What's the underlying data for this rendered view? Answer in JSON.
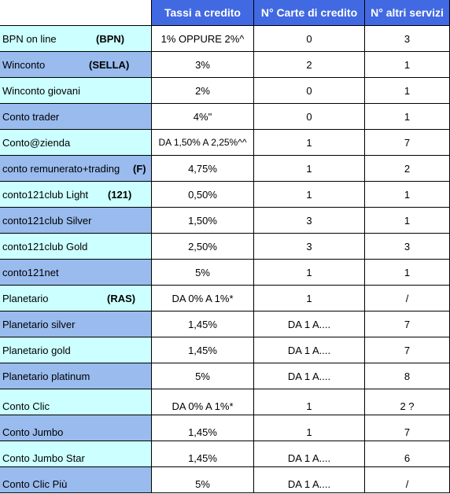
{
  "table": {
    "headers": [
      "",
      "Tassi a credito",
      "N° Carte di credito",
      "N° altri servizi"
    ],
    "rows": [
      {
        "name": "BPN on line",
        "brand": "(BPN)",
        "rate": "1% OPPURE 2%^",
        "cards": "0",
        "services": "3",
        "color": "cyan"
      },
      {
        "name": "Winconto",
        "brand": "(SELLA)",
        "rate": "3%",
        "cards": "2",
        "services": "1",
        "color": "blue"
      },
      {
        "name": "Winconto giovani",
        "brand": "",
        "rate": "2%",
        "cards": "0",
        "services": "1",
        "color": "cyan"
      },
      {
        "name": "Conto trader",
        "brand": "",
        "rate": "4%\"",
        "cards": "0",
        "services": "1",
        "color": "blue"
      },
      {
        "name": "Conto@zienda",
        "brand": "",
        "rate": "DA 1,50% A 2,25%^^",
        "cards": "1",
        "services": "7",
        "color": "cyan"
      },
      {
        "name": "conto remunerato+trading",
        "brand": "(F)",
        "rate": "4,75%",
        "cards": "1",
        "services": "2",
        "color": "blue"
      },
      {
        "name": "conto121club Light",
        "brand": "(121)",
        "rate": "0,50%",
        "cards": "1",
        "services": "1",
        "color": "cyan"
      },
      {
        "name": "conto121club Silver",
        "brand": "",
        "rate": "1,50%",
        "cards": "3",
        "services": "1",
        "color": "blue"
      },
      {
        "name": "conto121club Gold",
        "brand": "",
        "rate": "2,50%",
        "cards": "3",
        "services": "3",
        "color": "cyan"
      },
      {
        "name": "conto121net",
        "brand": "",
        "rate": "5%",
        "cards": "1",
        "services": "1",
        "color": "blue"
      },
      {
        "name": "Planetario",
        "brand": "(RAS)",
        "rate": "DA 0% A 1%*",
        "cards": "1",
        "services": "/",
        "color": "cyan"
      },
      {
        "name": "Planetario silver",
        "brand": "",
        "rate": "1,45%",
        "cards": "DA 1 A....",
        "services": "7",
        "color": "blue"
      },
      {
        "name": "Planetario gold",
        "brand": "",
        "rate": "1,45%",
        "cards": "DA 1 A....",
        "services": "7",
        "color": "cyan"
      },
      {
        "name": "Planetario platinum",
        "brand": "",
        "rate": "5%",
        "cards": "DA 1 A....",
        "services": "8",
        "color": "blue"
      },
      {
        "name": "Conto Clic",
        "brand": "",
        "rate": "DA 0% A 1%*",
        "cards": "1",
        "services": "2 ?",
        "color": "cyan"
      },
      {
        "name": "Conto Jumbo",
        "brand": "",
        "rate": "1,45%",
        "cards": "1",
        "services": "7",
        "color": "blue"
      },
      {
        "name": "Conto Jumbo Star",
        "brand": "",
        "rate": "1,45%",
        "cards": "DA 1 A....",
        "services": "6",
        "color": "cyan"
      },
      {
        "name": "Conto Clic Più",
        "brand": "",
        "rate": "5%",
        "cards": "DA 1 A....",
        "services": "/",
        "color": "blue"
      }
    ]
  },
  "colors": {
    "header_bg": "#4169e1",
    "header_text": "#ffffff",
    "row_cyan": "#ccffff",
    "row_blue": "#99bbee"
  }
}
